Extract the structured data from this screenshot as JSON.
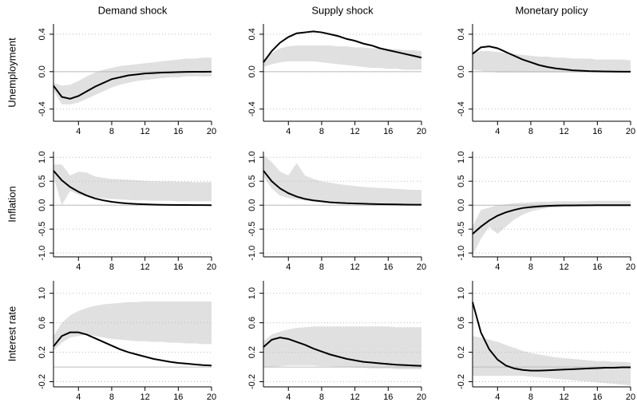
{
  "chart_data": [
    {
      "type": "line",
      "title": "Demand shock",
      "ylabel": "Unemployment",
      "x": [
        1,
        2,
        3,
        4,
        5,
        6,
        7,
        8,
        9,
        10,
        11,
        12,
        13,
        14,
        15,
        16,
        17,
        18,
        19,
        20
      ],
      "xlim": [
        1,
        20
      ],
      "xticks": [
        4,
        8,
        12,
        16,
        20
      ],
      "ylim": [
        -0.53,
        0.51
      ],
      "yticks": [
        {
          "value": -0.4,
          "label": "-0.4"
        },
        {
          "value": 0,
          "label": "0.0"
        },
        {
          "value": 0.4,
          "label": "0.4"
        }
      ],
      "grid": true,
      "zero_line": true,
      "series": [
        {
          "color": "#000000",
          "values": [
            -0.15,
            -0.27,
            -0.29,
            -0.26,
            -0.21,
            -0.16,
            -0.12,
            -0.08,
            -0.06,
            -0.04,
            -0.03,
            -0.02,
            -0.015,
            -0.01,
            -0.008,
            -0.005,
            -0.003,
            -0.002,
            -0.001,
            0
          ]
        }
      ],
      "band": {
        "color": "#e0e0e0",
        "lower": [
          -0.2,
          -0.35,
          -0.35,
          -0.33,
          -0.29,
          -0.25,
          -0.21,
          -0.17,
          -0.14,
          -0.12,
          -0.1,
          -0.09,
          -0.08,
          -0.07,
          -0.06,
          -0.06,
          -0.05,
          -0.05,
          -0.05,
          -0.05
        ],
        "upper": [
          -0.12,
          -0.15,
          -0.14,
          -0.1,
          -0.05,
          -0.01,
          0.02,
          0.04,
          0.06,
          0.07,
          0.08,
          0.09,
          0.1,
          0.11,
          0.12,
          0.13,
          0.14,
          0.14,
          0.15,
          0.15
        ]
      }
    },
    {
      "type": "line",
      "title": "Supply shock",
      "x": [
        1,
        2,
        3,
        4,
        5,
        6,
        7,
        8,
        9,
        10,
        11,
        12,
        13,
        14,
        15,
        16,
        17,
        18,
        19,
        20
      ],
      "xlim": [
        1,
        20
      ],
      "xticks": [
        4,
        8,
        12,
        16,
        20
      ],
      "ylim": [
        -0.53,
        0.51
      ],
      "yticks": [
        {
          "value": -0.4,
          "label": "-0.4"
        },
        {
          "value": 0,
          "label": "0.0"
        },
        {
          "value": 0.4,
          "label": "0.4"
        }
      ],
      "grid": true,
      "zero_line": true,
      "series": [
        {
          "color": "#000000",
          "values": [
            0.1,
            0.22,
            0.31,
            0.37,
            0.41,
            0.42,
            0.43,
            0.42,
            0.4,
            0.38,
            0.35,
            0.33,
            0.3,
            0.28,
            0.25,
            0.23,
            0.21,
            0.19,
            0.17,
            0.15
          ]
        }
      ],
      "band": {
        "color": "#e0e0e0",
        "lower": [
          0.05,
          0.08,
          0.1,
          0.11,
          0.11,
          0.11,
          0.11,
          0.1,
          0.09,
          0.08,
          0.07,
          0.06,
          0.05,
          0.04,
          0.04,
          0.03,
          0.03,
          0.02,
          0.02,
          0.02
        ],
        "upper": [
          0.12,
          0.2,
          0.25,
          0.27,
          0.28,
          0.28,
          0.28,
          0.28,
          0.28,
          0.27,
          0.27,
          0.26,
          0.26,
          0.25,
          0.25,
          0.24,
          0.24,
          0.23,
          0.23,
          0.22
        ]
      }
    },
    {
      "type": "line",
      "title": "Monetary policy",
      "x": [
        1,
        2,
        3,
        4,
        5,
        6,
        7,
        8,
        9,
        10,
        11,
        12,
        13,
        14,
        15,
        16,
        17,
        18,
        19,
        20
      ],
      "xlim": [
        1,
        20
      ],
      "xticks": [
        4,
        8,
        12,
        16,
        20
      ],
      "ylim": [
        -0.53,
        0.51
      ],
      "yticks": [
        {
          "value": -0.4,
          "label": "-0.4"
        },
        {
          "value": 0,
          "label": "0.0"
        },
        {
          "value": 0.4,
          "label": "0.4"
        }
      ],
      "grid": true,
      "zero_line": true,
      "series": [
        {
          "color": "#000000",
          "values": [
            0.19,
            0.26,
            0.27,
            0.25,
            0.21,
            0.17,
            0.13,
            0.1,
            0.07,
            0.05,
            0.035,
            0.025,
            0.015,
            0.01,
            0.006,
            0.004,
            0.002,
            0.001,
            0,
            0
          ]
        }
      ],
      "band": {
        "color": "#e0e0e0",
        "lower": [
          0.02,
          0.01,
          0,
          -0.01,
          -0.01,
          -0.01,
          -0.01,
          -0.01,
          -0.01,
          -0.01,
          -0.01,
          -0.01,
          -0.01,
          -0.01,
          -0.01,
          -0.01,
          -0.01,
          -0.01,
          -0.01,
          -0.01
        ],
        "upper": [
          0.2,
          0.22,
          0.22,
          0.21,
          0.2,
          0.19,
          0.18,
          0.17,
          0.16,
          0.16,
          0.15,
          0.15,
          0.14,
          0.14,
          0.14,
          0.13,
          0.13,
          0.13,
          0.13,
          0.12
        ]
      }
    },
    {
      "type": "line",
      "ylabel": "Inflation",
      "x": [
        1,
        2,
        3,
        4,
        5,
        6,
        7,
        8,
        9,
        10,
        11,
        12,
        13,
        14,
        15,
        16,
        17,
        18,
        19,
        20
      ],
      "xlim": [
        1,
        20
      ],
      "xticks": [
        4,
        8,
        12,
        16,
        20
      ],
      "ylim": [
        -1.08,
        1.12
      ],
      "yticks": [
        {
          "value": -1,
          "label": "-1.0"
        },
        {
          "value": -0.5,
          "label": "-0.5"
        },
        {
          "value": 0,
          "label": "0.0"
        },
        0.5,
        {
          "value": 1,
          "label": "1.0"
        }
      ],
      "grid": true,
      "zero_line": true,
      "series": [
        {
          "color": "#000000",
          "values": [
            0.72,
            0.52,
            0.38,
            0.28,
            0.2,
            0.14,
            0.1,
            0.07,
            0.05,
            0.035,
            0.025,
            0.018,
            0.012,
            0.008,
            0.006,
            0.004,
            0.003,
            0.002,
            0.001,
            0
          ]
        }
      ],
      "band": {
        "color": "#e0e0e0",
        "lower": [
          0.6,
          0,
          0.3,
          0.22,
          0.18,
          0.16,
          0.14,
          0.13,
          0.12,
          0.11,
          0.1,
          0.1,
          0.09,
          0.09,
          0.09,
          0.08,
          0.08,
          0.08,
          0.08,
          0.08
        ],
        "upper": [
          0.85,
          0.85,
          0.62,
          0.7,
          0.68,
          0.6,
          0.57,
          0.55,
          0.54,
          0.53,
          0.52,
          0.51,
          0.5,
          0.5,
          0.5,
          0.49,
          0.49,
          0.48,
          0.48,
          0.48
        ]
      }
    },
    {
      "type": "line",
      "x": [
        1,
        2,
        3,
        4,
        5,
        6,
        7,
        8,
        9,
        10,
        11,
        12,
        13,
        14,
        15,
        16,
        17,
        18,
        19,
        20
      ],
      "xlim": [
        1,
        20
      ],
      "xticks": [
        4,
        8,
        12,
        16,
        20
      ],
      "ylim": [
        -1.08,
        1.12
      ],
      "yticks": [
        {
          "value": -1,
          "label": "-1.0"
        },
        {
          "value": -0.5,
          "label": "-0.5"
        },
        {
          "value": 0,
          "label": "0.0"
        },
        0.5,
        {
          "value": 1,
          "label": "1.0"
        }
      ],
      "grid": true,
      "zero_line": true,
      "series": [
        {
          "color": "#000000",
          "values": [
            0.72,
            0.5,
            0.35,
            0.25,
            0.18,
            0.13,
            0.1,
            0.08,
            0.06,
            0.05,
            0.04,
            0.035,
            0.03,
            0.025,
            0.02,
            0.018,
            0.015,
            0.012,
            0.01,
            0.01
          ]
        }
      ],
      "band": {
        "color": "#e0e0e0",
        "lower": [
          0.6,
          0.35,
          0.2,
          0.15,
          0.12,
          0.1,
          0.08,
          0.07,
          0.06,
          0.05,
          0.05,
          0.04,
          0.04,
          0.04,
          0.03,
          0.03,
          0.03,
          0.03,
          0.03,
          0.03
        ],
        "upper": [
          1.05,
          0.9,
          0.7,
          0.62,
          0.88,
          0.62,
          0.55,
          0.5,
          0.47,
          0.44,
          0.42,
          0.4,
          0.38,
          0.37,
          0.36,
          0.35,
          0.34,
          0.33,
          0.32,
          0.32
        ]
      }
    },
    {
      "type": "line",
      "x": [
        1,
        2,
        3,
        4,
        5,
        6,
        7,
        8,
        9,
        10,
        11,
        12,
        13,
        14,
        15,
        16,
        17,
        18,
        19,
        20
      ],
      "xlim": [
        1,
        20
      ],
      "xticks": [
        4,
        8,
        12,
        16,
        20
      ],
      "ylim": [
        -1.08,
        1.12
      ],
      "yticks": [
        {
          "value": -1,
          "label": "-1.0"
        },
        {
          "value": -0.5,
          "label": "-0.5"
        },
        {
          "value": 0,
          "label": "0.0"
        },
        0.5,
        {
          "value": 1,
          "label": "1.0"
        }
      ],
      "grid": true,
      "zero_line": true,
      "series": [
        {
          "color": "#000000",
          "values": [
            -0.6,
            -0.45,
            -0.32,
            -0.22,
            -0.15,
            -0.1,
            -0.06,
            -0.04,
            -0.025,
            -0.015,
            -0.01,
            -0.005,
            -0.004,
            -0.003,
            -0.002,
            -0.001,
            -0.001,
            0,
            0,
            0
          ]
        }
      ],
      "band": {
        "color": "#e0e0e0",
        "lower": [
          -1.05,
          -0.7,
          -0.45,
          -0.6,
          -0.45,
          -0.3,
          -0.2,
          -0.13,
          -0.09,
          -0.06,
          -0.05,
          -0.04,
          -0.03,
          -0.03,
          -0.02,
          -0.02,
          -0.02,
          -0.02,
          -0.02,
          -0.02
        ],
        "upper": [
          -0.45,
          -0.1,
          -0.05,
          0,
          0.02,
          0.04,
          0.05,
          0.06,
          0.07,
          0.07,
          0.08,
          0.08,
          0.08,
          0.08,
          0.09,
          0.09,
          0.09,
          0.09,
          0.09,
          0.09
        ]
      }
    },
    {
      "type": "line",
      "ylabel": "Interest rate",
      "x": [
        1,
        2,
        3,
        4,
        5,
        6,
        7,
        8,
        9,
        10,
        11,
        12,
        13,
        14,
        15,
        16,
        17,
        18,
        19,
        20
      ],
      "xlim": [
        1,
        20
      ],
      "xticks": [
        4,
        8,
        12,
        16,
        20
      ],
      "ylim": [
        -0.27,
        1.17
      ],
      "yticks": [
        -0.2,
        0.2,
        0.6,
        {
          "value": 1,
          "label": "1.0"
        }
      ],
      "grid": true,
      "zero_line": true,
      "series": [
        {
          "color": "#000000",
          "values": [
            0.28,
            0.42,
            0.47,
            0.47,
            0.44,
            0.39,
            0.34,
            0.29,
            0.24,
            0.2,
            0.17,
            0.14,
            0.11,
            0.09,
            0.07,
            0.055,
            0.045,
            0.035,
            0.025,
            0.02
          ]
        }
      ],
      "band": {
        "color": "#e0e0e0",
        "lower": [
          0.22,
          0.33,
          0.4,
          0.42,
          0.44,
          0.42,
          0.4,
          0.38,
          0.37,
          0.36,
          0.35,
          0.35,
          0.34,
          0.34,
          0.33,
          0.33,
          0.32,
          0.32,
          0.31,
          0.31
        ],
        "upper": [
          0.42,
          0.6,
          0.7,
          0.76,
          0.8,
          0.83,
          0.85,
          0.86,
          0.87,
          0.88,
          0.88,
          0.89,
          0.89,
          0.89,
          0.89,
          0.89,
          0.89,
          0.89,
          0.89,
          0.89
        ]
      }
    },
    {
      "type": "line",
      "x": [
        1,
        2,
        3,
        4,
        5,
        6,
        7,
        8,
        9,
        10,
        11,
        12,
        13,
        14,
        15,
        16,
        17,
        18,
        19,
        20
      ],
      "xlim": [
        1,
        20
      ],
      "xticks": [
        4,
        8,
        12,
        16,
        20
      ],
      "ylim": [
        -0.27,
        1.17
      ],
      "yticks": [
        -0.2,
        0.2,
        0.6,
        {
          "value": 1,
          "label": "1.0"
        }
      ],
      "grid": true,
      "zero_line": true,
      "series": [
        {
          "color": "#000000",
          "values": [
            0.27,
            0.37,
            0.4,
            0.38,
            0.34,
            0.3,
            0.25,
            0.21,
            0.17,
            0.14,
            0.11,
            0.09,
            0.07,
            0.06,
            0.05,
            0.04,
            0.03,
            0.025,
            0.02,
            0.015
          ]
        }
      ],
      "band": {
        "color": "#e0e0e0",
        "lower": [
          -0.01,
          0,
          0.01,
          0.02,
          0.02,
          0.02,
          0.02,
          0.01,
          0.01,
          0,
          0,
          -0.01,
          -0.01,
          -0.02,
          -0.02,
          -0.02,
          -0.03,
          -0.03,
          -0.03,
          -0.03
        ],
        "upper": [
          0.35,
          0.44,
          0.48,
          0.51,
          0.53,
          0.54,
          0.55,
          0.55,
          0.55,
          0.55,
          0.55,
          0.55,
          0.55,
          0.55,
          0.55,
          0.55,
          0.54,
          0.54,
          0.54,
          0.54
        ]
      }
    },
    {
      "type": "line",
      "x": [
        1,
        2,
        3,
        4,
        5,
        6,
        7,
        8,
        9,
        10,
        11,
        12,
        13,
        14,
        15,
        16,
        17,
        18,
        19,
        20
      ],
      "xlim": [
        1,
        20
      ],
      "xticks": [
        4,
        8,
        12,
        16,
        20
      ],
      "ylim": [
        -0.27,
        1.17
      ],
      "yticks": [
        -0.2,
        0.2,
        0.6,
        {
          "value": 1,
          "label": "1.0"
        }
      ],
      "grid": true,
      "zero_line": true,
      "series": [
        {
          "color": "#000000",
          "values": [
            0.88,
            0.47,
            0.24,
            0.1,
            0.02,
            -0.02,
            -0.04,
            -0.05,
            -0.05,
            -0.045,
            -0.04,
            -0.035,
            -0.03,
            -0.025,
            -0.02,
            -0.015,
            -0.01,
            -0.01,
            -0.005,
            -0.005
          ]
        }
      ],
      "band": {
        "color": "#e0e0e0",
        "lower": [
          -0.12,
          -0.12,
          -0.12,
          -0.12,
          -0.12,
          -0.12,
          -0.12,
          -0.13,
          -0.14,
          -0.15,
          -0.16,
          -0.17,
          -0.18,
          -0.19,
          -0.2,
          -0.21,
          -0.22,
          -0.23,
          -0.24,
          -0.25
        ],
        "upper": [
          0.42,
          0.4,
          0.37,
          0.34,
          0.3,
          0.26,
          0.22,
          0.19,
          0.17,
          0.15,
          0.13,
          0.12,
          0.11,
          0.1,
          0.09,
          0.08,
          0.08,
          0.07,
          0.07,
          0.06
        ]
      }
    }
  ]
}
